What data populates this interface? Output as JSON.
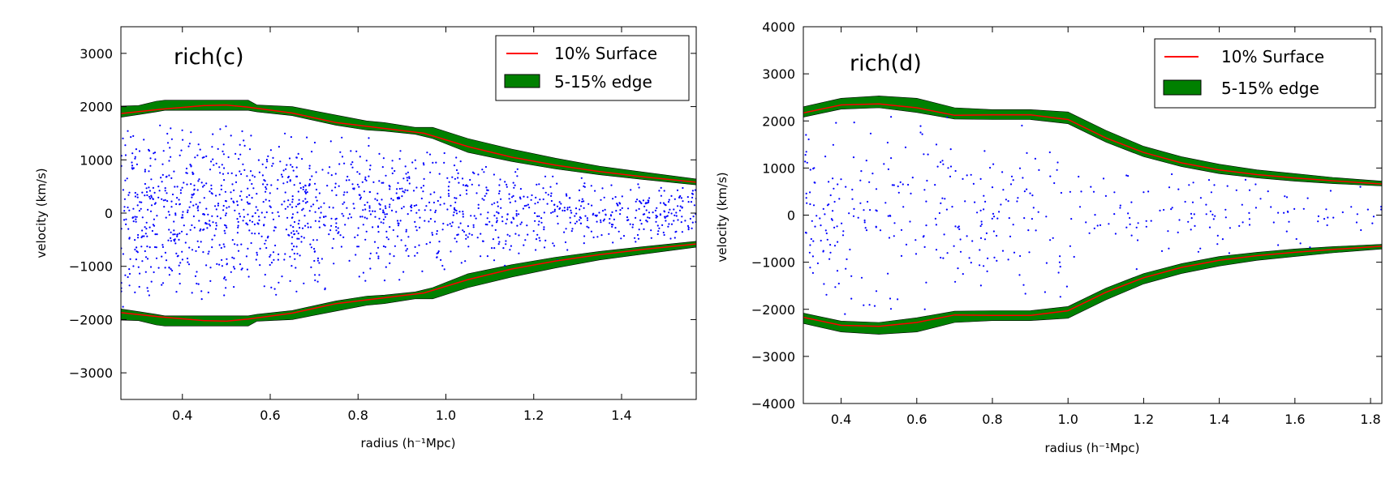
{
  "chart_data": [
    {
      "type": "scatter",
      "title": "rich(c)",
      "xlabel": "radius (h⁻¹Mpc)",
      "ylabel": "velocity (km/s)",
      "xlim": [
        0.26,
        1.57
      ],
      "ylim": [
        -3500,
        3500
      ],
      "xticks": [
        "0.4",
        "0.6",
        "0.8",
        "1.0",
        "1.2",
        "1.4"
      ],
      "xtick_values": [
        0.4,
        0.6,
        0.8,
        1.0,
        1.2,
        1.4
      ],
      "yticks": [
        "3000",
        "2000",
        "1000",
        "0",
        "−1000",
        "−2000",
        "−3000"
      ],
      "ytick_values": [
        3000,
        2000,
        1000,
        0,
        -1000,
        -2000,
        -3000
      ],
      "grid": false,
      "legend": {
        "position": "top-right",
        "surface_label": "10% Surface",
        "edge_label": "5-15% edge"
      },
      "colors": {
        "points": "#0000ff",
        "surface": "#ff0000",
        "edge": "#008000"
      },
      "points": {
        "count": 1500,
        "r_max_frac": 0.82,
        "x_decay": 0.3
      },
      "surface": {
        "x": [
          0.26,
          0.35,
          0.45,
          0.5,
          0.55,
          0.65,
          0.75,
          0.85,
          0.95,
          1.05,
          1.15,
          1.25,
          1.35,
          1.45,
          1.57
        ],
        "y": [
          1870,
          1950,
          2020,
          2030,
          1990,
          1880,
          1700,
          1600,
          1500,
          1250,
          1050,
          900,
          780,
          680,
          580
        ]
      },
      "edge": {
        "x": [
          0.26,
          0.3,
          0.34,
          0.36,
          0.55,
          0.57,
          0.65,
          0.75,
          0.82,
          0.86,
          0.93,
          0.97,
          1.05,
          1.15,
          1.25,
          1.35,
          1.45,
          1.57
        ],
        "upper": [
          2010,
          2020,
          2100,
          2120,
          2120,
          2030,
          2000,
          1840,
          1730,
          1700,
          1610,
          1610,
          1400,
          1200,
          1030,
          880,
          770,
          640
        ],
        "lower": [
          1800,
          1850,
          1900,
          1930,
          1930,
          1900,
          1830,
          1650,
          1560,
          1540,
          1480,
          1400,
          1140,
          970,
          830,
          720,
          630,
          530
        ]
      }
    },
    {
      "type": "scatter",
      "title": "rich(d)",
      "xlabel": "radius (h⁻¹Mpc)",
      "ylabel": "velocity (km/s)",
      "xlim": [
        0.3,
        1.83
      ],
      "ylim": [
        -4000,
        4000
      ],
      "xticks": [
        "0.4",
        "0.6",
        "0.8",
        "1.0",
        "1.2",
        "1.4",
        "1.6",
        "1.8"
      ],
      "xtick_values": [
        0.4,
        0.6,
        0.8,
        1.0,
        1.2,
        1.4,
        1.6,
        1.8
      ],
      "yticks": [
        "4000",
        "3000",
        "2000",
        "1000",
        "0",
        "−1000",
        "−2000",
        "−3000",
        "−4000"
      ],
      "ytick_values": [
        4000,
        3000,
        2000,
        1000,
        0,
        -1000,
        -2000,
        -3000,
        -4000
      ],
      "grid": false,
      "legend": {
        "position": "top-right",
        "surface_label": "10% Surface",
        "edge_label": "5-15% edge"
      },
      "colors": {
        "points": "#0000ff",
        "surface": "#ff0000",
        "edge": "#008000"
      },
      "points": {
        "count": 420,
        "r_max_frac": 0.92,
        "x_decay": 0.15
      },
      "surface": {
        "x": [
          0.3,
          0.4,
          0.5,
          0.6,
          0.7,
          0.8,
          0.9,
          1.0,
          1.1,
          1.2,
          1.3,
          1.4,
          1.5,
          1.6,
          1.7,
          1.83
        ],
        "y": [
          2170,
          2340,
          2360,
          2280,
          2120,
          2130,
          2130,
          2030,
          1640,
          1330,
          1110,
          960,
          860,
          790,
          730,
          660
        ]
      },
      "edge": {
        "x": [
          0.3,
          0.4,
          0.5,
          0.6,
          0.7,
          0.8,
          0.9,
          1.0,
          1.1,
          1.2,
          1.3,
          1.4,
          1.5,
          1.6,
          1.7,
          1.83
        ],
        "upper": [
          2300,
          2480,
          2530,
          2480,
          2280,
          2240,
          2240,
          2190,
          1800,
          1460,
          1240,
          1080,
          960,
          880,
          800,
          720
        ],
        "lower": [
          2080,
          2250,
          2280,
          2180,
          2040,
          2030,
          2030,
          1940,
          1550,
          1240,
          1030,
          880,
          790,
          720,
          670,
          620
        ]
      }
    }
  ]
}
